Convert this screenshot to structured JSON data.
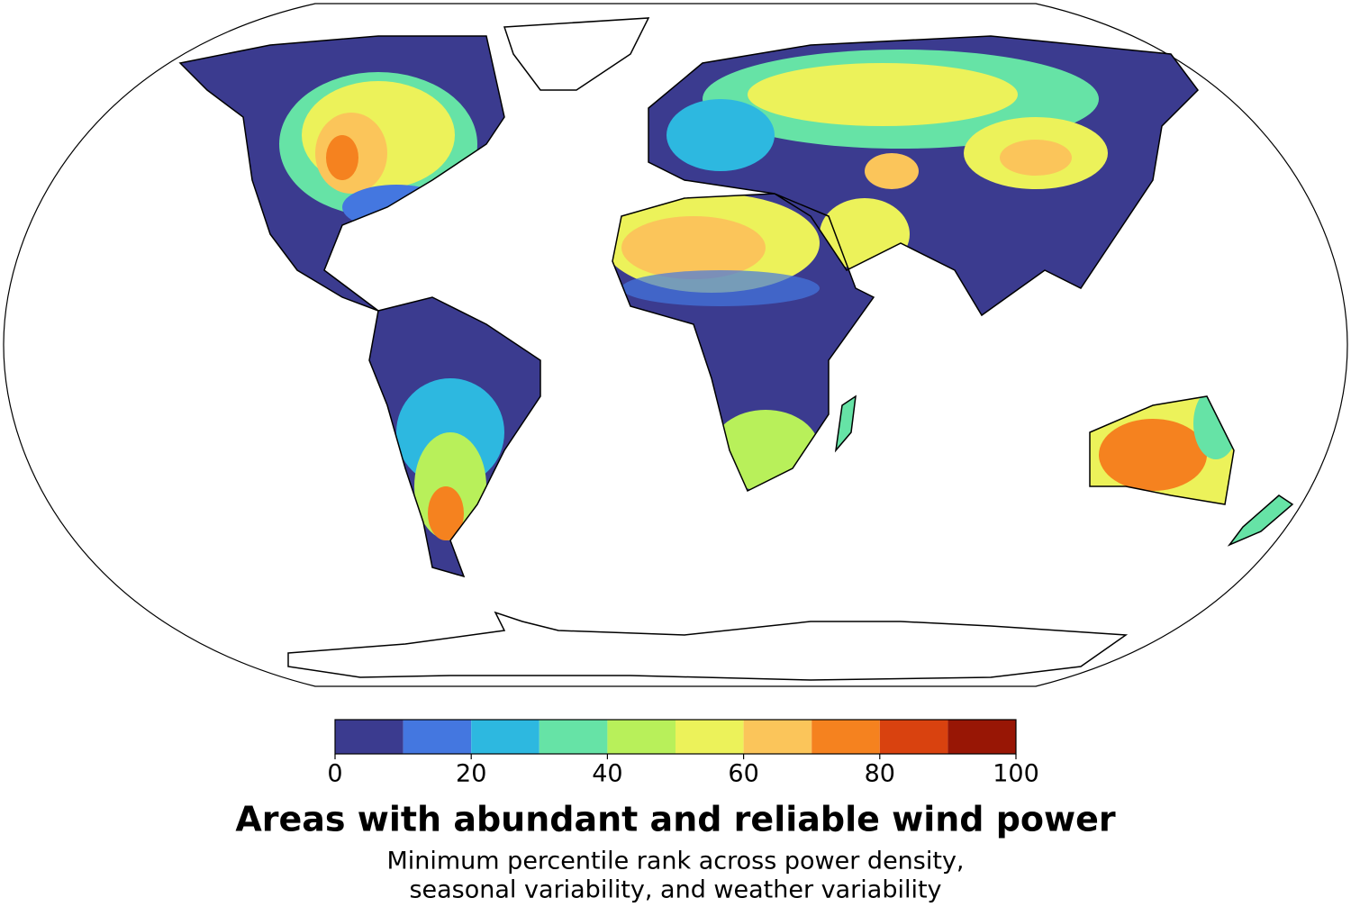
{
  "colorbar": {
    "bins": [
      0,
      10,
      20,
      30,
      40,
      50,
      60,
      70,
      80,
      90,
      100
    ],
    "colors": [
      "#3b3b8f",
      "#4477e0",
      "#2db8e0",
      "#66e3a6",
      "#b8f05a",
      "#ecf25a",
      "#fbc55a",
      "#f5821f",
      "#d9420f",
      "#981605"
    ],
    "ticks": [
      0,
      20,
      40,
      60,
      80,
      100
    ]
  },
  "title": "Areas with abundant and reliable wind power",
  "subtitle": [
    "Minimum percentile rank across power density,",
    "seasonal variability, and weather variability"
  ]
}
